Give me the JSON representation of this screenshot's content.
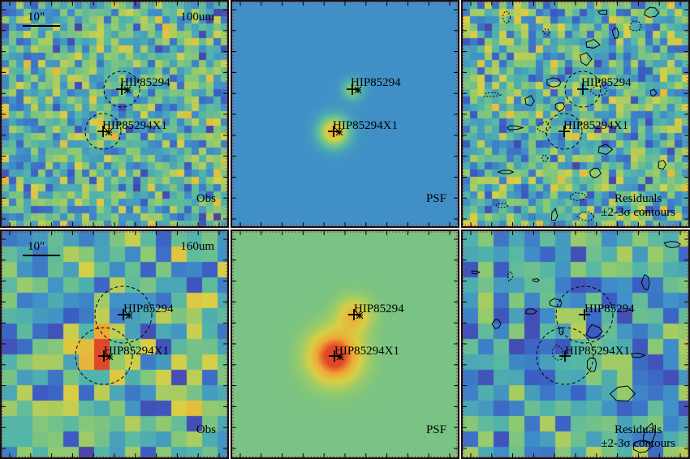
{
  "rows": [
    {
      "band": "100um",
      "scale_label": "10\"",
      "panels": [
        {
          "label": "Obs",
          "kind": "obs"
        },
        {
          "label": "PSF",
          "kind": "psf"
        },
        {
          "label_lines": [
            "Residuals",
            "±2-3σ contours"
          ],
          "kind": "res"
        }
      ]
    },
    {
      "band": "160um",
      "scale_label": "10\"",
      "panels": [
        {
          "label": "Obs",
          "kind": "obs"
        },
        {
          "label": "PSF",
          "kind": "psf"
        },
        {
          "label_lines": [
            "Residuals",
            "±2-3σ contours"
          ],
          "kind": "res"
        }
      ]
    }
  ],
  "sources": [
    {
      "name": "HIP85294"
    },
    {
      "name": "HIP85294X1"
    }
  ],
  "colormap": [
    "#5b2a86",
    "#3b5cc4",
    "#3f8fc8",
    "#53b6a8",
    "#8fca70",
    "#d9cf45",
    "#f0a635",
    "#e0452a"
  ]
}
